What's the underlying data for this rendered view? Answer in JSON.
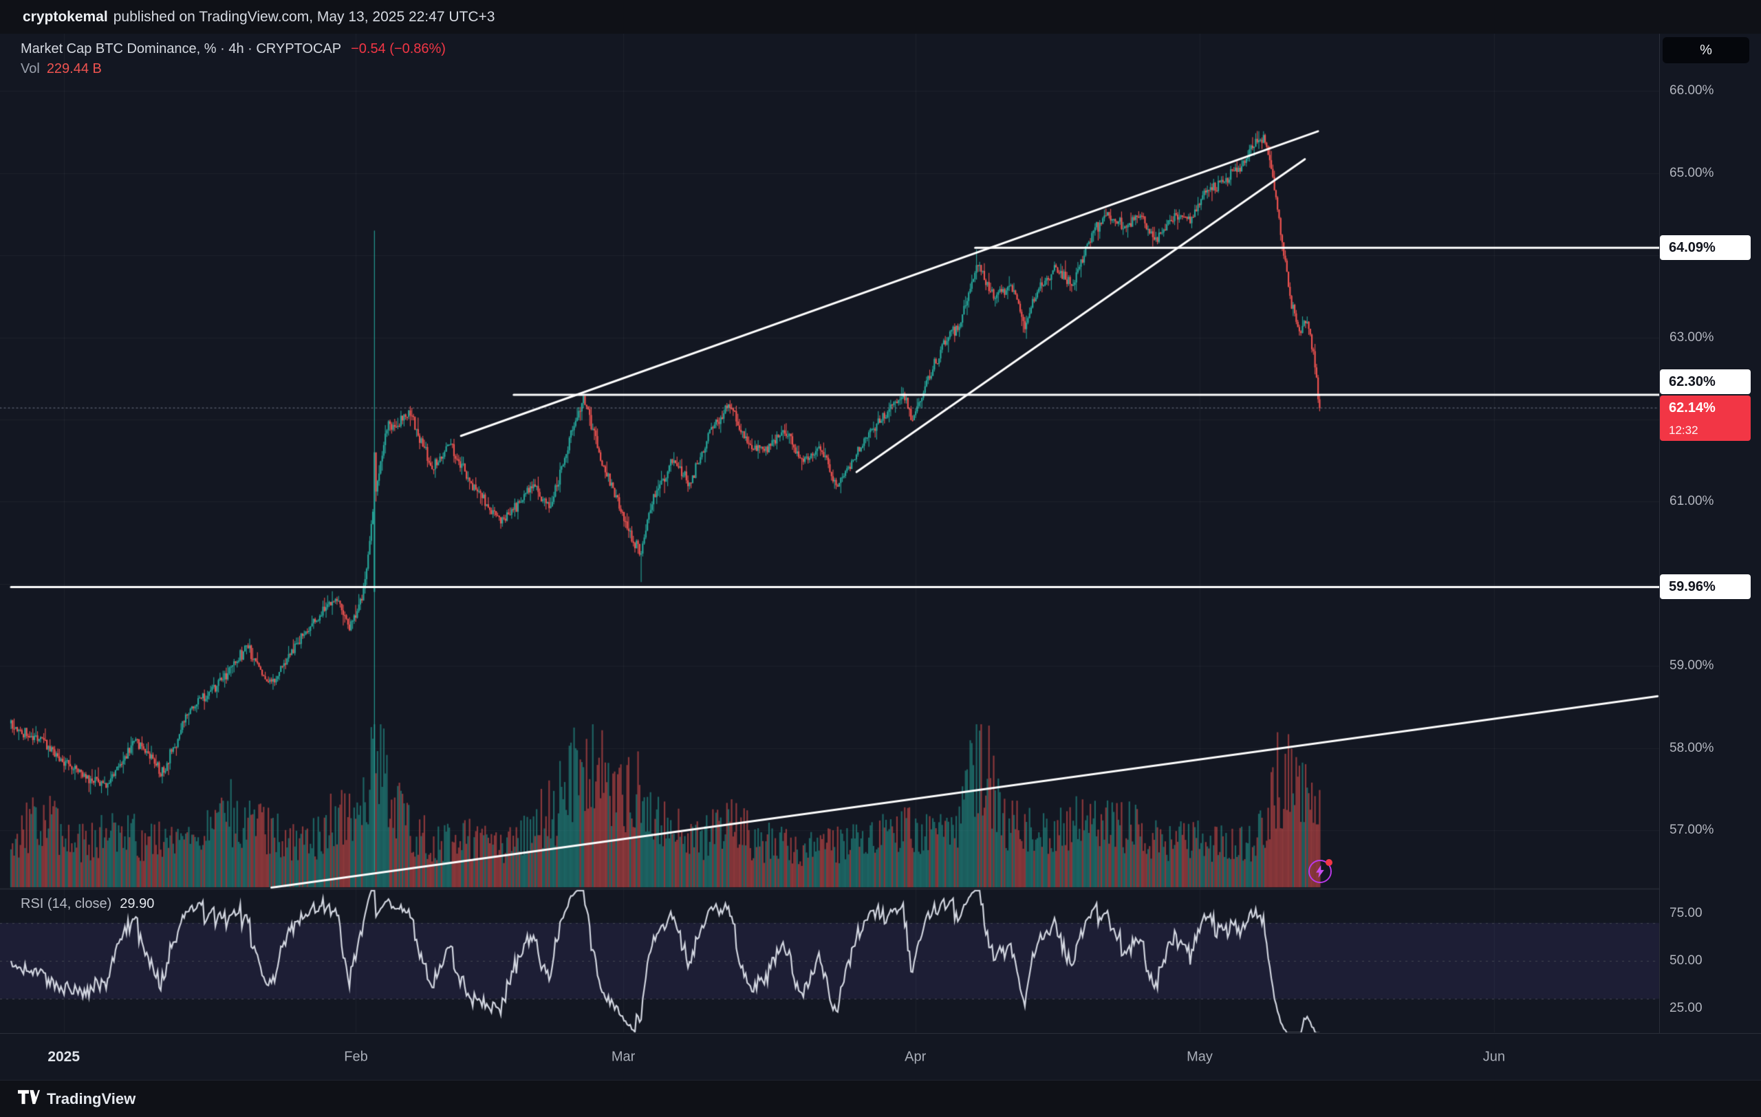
{
  "colors": {
    "bg_outer": "#0f1117",
    "bg_chart": "#131722",
    "up": "#26a69a",
    "down": "#ef5350",
    "accent_red": "#f23645",
    "vol_up": "rgba(38,166,154,0.55)",
    "vol_down": "rgba(239,83,80,0.55)",
    "line_white": "#ffffff",
    "grid": "rgba(255,255,255,0.045)",
    "separator": "#2a2e39",
    "rsi_line": "#d2d6e0",
    "rsi_band": "rgba(129,108,255,0.09)",
    "rsi_dash": "#434651",
    "last_price_line": "rgba(170,178,195,0.5)",
    "axis_text": "#b2b5be"
  },
  "header": {
    "author": "cryptokemal",
    "publish_text": "published on TradingView.com, May 13, 2025 22:47 UTC+3"
  },
  "legend": {
    "title": "Market Cap BTC Dominance, % · 4h · CRYPTOCAP",
    "change": "−0.54 (−0.86%)",
    "vol_label": "Vol",
    "vol_value": "229.44 B"
  },
  "rsi_legend": {
    "title": "RSI (14, close)",
    "value": "29.90"
  },
  "axis": {
    "unit_button": "%",
    "y_ticks": [
      {
        "label": "66.00%",
        "value": 66
      },
      {
        "label": "65.00%",
        "value": 65
      },
      {
        "label": "63.00%",
        "value": 63
      },
      {
        "label": "61.00%",
        "value": 61
      },
      {
        "label": "59.00%",
        "value": 59
      },
      {
        "label": "58.00%",
        "value": 58
      },
      {
        "label": "57.00%",
        "value": 57
      }
    ],
    "price_labels": {
      "level_64": "64.09%",
      "level_62": "62.30%",
      "last": "62.14%",
      "countdown": "12:32",
      "level_60": "59.96%"
    },
    "rsi_ticks": [
      {
        "label": "75.00",
        "value": 75
      },
      {
        "label": "50.00",
        "value": 50
      },
      {
        "label": "25.00",
        "value": 25
      }
    ],
    "x_ticks": [
      {
        "label": "2025",
        "f": 0.032,
        "major": true
      },
      {
        "label": "Feb",
        "f": 0.2093
      },
      {
        "label": "Mar",
        "f": 0.3715
      },
      {
        "label": "Apr",
        "f": 0.5487
      },
      {
        "label": "May",
        "f": 0.7212
      },
      {
        "label": "Jun",
        "f": 0.8998
      }
    ]
  },
  "footer": {
    "brand": "TradingView"
  },
  "chart_data": {
    "type": "candlestick",
    "title": "Market Cap BTC Dominance",
    "symbol": "CRYPTOCAP",
    "interval": "4h",
    "last_price": 62.14,
    "change": -0.54,
    "change_pct": -0.86,
    "volume_label": "229.44 B",
    "rsi_period": 14,
    "rsi_last": 29.9,
    "key_levels": [
      64.09,
      62.3,
      59.96
    ],
    "price_axis_range": [
      56.28,
      66.7
    ],
    "rsi_axis_ticks": [
      75,
      50,
      25
    ],
    "x_tick_labels": [
      "2025",
      "Feb",
      "Mar",
      "Apr",
      "May",
      "Jun"
    ],
    "bars": 840,
    "plot_span_fraction": 0.794,
    "price_path": [
      [
        0.0,
        58.3
      ],
      [
        0.02,
        58.05
      ],
      [
        0.034,
        57.8
      ],
      [
        0.058,
        57.5
      ],
      [
        0.075,
        58.1
      ],
      [
        0.092,
        57.7
      ],
      [
        0.109,
        58.5
      ],
      [
        0.13,
        58.85
      ],
      [
        0.143,
        59.25
      ],
      [
        0.157,
        58.75
      ],
      [
        0.174,
        59.3
      ],
      [
        0.187,
        59.6
      ],
      [
        0.198,
        59.85
      ],
      [
        0.205,
        59.45
      ],
      [
        0.214,
        59.9
      ],
      [
        0.2203,
        61.0
      ],
      [
        0.228,
        61.9
      ],
      [
        0.242,
        62.05
      ],
      [
        0.256,
        61.4
      ],
      [
        0.266,
        61.7
      ],
      [
        0.28,
        61.2
      ],
      [
        0.297,
        60.75
      ],
      [
        0.307,
        60.95
      ],
      [
        0.317,
        61.2
      ],
      [
        0.327,
        60.9
      ],
      [
        0.341,
        61.9
      ],
      [
        0.348,
        62.25
      ],
      [
        0.358,
        61.5
      ],
      [
        0.368,
        61.0
      ],
      [
        0.378,
        60.5
      ],
      [
        0.382,
        60.35
      ],
      [
        0.389,
        61.0
      ],
      [
        0.402,
        61.5
      ],
      [
        0.412,
        61.2
      ],
      [
        0.423,
        61.8
      ],
      [
        0.436,
        62.2
      ],
      [
        0.447,
        61.7
      ],
      [
        0.457,
        61.6
      ],
      [
        0.47,
        61.85
      ],
      [
        0.481,
        61.5
      ],
      [
        0.491,
        61.65
      ],
      [
        0.501,
        61.2
      ],
      [
        0.511,
        61.5
      ],
      [
        0.521,
        61.85
      ],
      [
        0.532,
        62.1
      ],
      [
        0.542,
        62.3
      ],
      [
        0.547,
        62.0
      ],
      [
        0.556,
        62.5
      ],
      [
        0.566,
        62.9
      ],
      [
        0.576,
        63.2
      ],
      [
        0.586,
        63.9
      ],
      [
        0.596,
        63.5
      ],
      [
        0.607,
        63.65
      ],
      [
        0.615,
        63.15
      ],
      [
        0.624,
        63.6
      ],
      [
        0.634,
        63.85
      ],
      [
        0.644,
        63.6
      ],
      [
        0.654,
        64.2
      ],
      [
        0.665,
        64.5
      ],
      [
        0.675,
        64.35
      ],
      [
        0.685,
        64.5
      ],
      [
        0.695,
        64.2
      ],
      [
        0.706,
        64.5
      ],
      [
        0.716,
        64.45
      ],
      [
        0.726,
        64.8
      ],
      [
        0.736,
        64.9
      ],
      [
        0.746,
        65.1
      ],
      [
        0.755,
        65.35
      ],
      [
        0.76,
        65.45
      ],
      [
        0.765,
        65.0
      ],
      [
        0.769,
        64.5
      ],
      [
        0.773,
        63.9
      ],
      [
        0.777,
        63.4
      ],
      [
        0.782,
        63.05
      ],
      [
        0.786,
        63.25
      ],
      [
        0.79,
        62.85
      ],
      [
        0.794,
        62.14
      ]
    ],
    "events": [
      {
        "f": 0.2203,
        "high": 64.3,
        "low": 56.5,
        "open": 59.9,
        "close": 61.6
      },
      {
        "f": 0.382,
        "low": 60.02
      },
      {
        "f": 0.586,
        "high": 64.07
      },
      {
        "f": 0.76,
        "high": 65.51
      },
      {
        "f": 0.794,
        "low": 62.1
      }
    ],
    "volume_path": [
      [
        0.0,
        0.35
      ],
      [
        0.02,
        0.5
      ],
      [
        0.04,
        0.3
      ],
      [
        0.06,
        0.45
      ],
      [
        0.08,
        0.35
      ],
      [
        0.1,
        0.3
      ],
      [
        0.12,
        0.4
      ],
      [
        0.135,
        0.55
      ],
      [
        0.15,
        0.45
      ],
      [
        0.165,
        0.35
      ],
      [
        0.18,
        0.3
      ],
      [
        0.195,
        0.5
      ],
      [
        0.205,
        0.55
      ],
      [
        0.215,
        0.65
      ],
      [
        0.2203,
        1.0
      ],
      [
        0.228,
        0.8
      ],
      [
        0.235,
        0.6
      ],
      [
        0.245,
        0.4
      ],
      [
        0.26,
        0.3
      ],
      [
        0.28,
        0.35
      ],
      [
        0.3,
        0.3
      ],
      [
        0.315,
        0.45
      ],
      [
        0.33,
        0.55
      ],
      [
        0.345,
        0.9
      ],
      [
        0.355,
        0.95
      ],
      [
        0.362,
        0.8
      ],
      [
        0.37,
        0.65
      ],
      [
        0.378,
        0.75
      ],
      [
        0.385,
        0.65
      ],
      [
        0.4,
        0.45
      ],
      [
        0.42,
        0.35
      ],
      [
        0.435,
        0.5
      ],
      [
        0.45,
        0.35
      ],
      [
        0.47,
        0.3
      ],
      [
        0.49,
        0.28
      ],
      [
        0.51,
        0.32
      ],
      [
        0.53,
        0.38
      ],
      [
        0.55,
        0.42
      ],
      [
        0.565,
        0.38
      ],
      [
        0.576,
        0.5
      ],
      [
        0.586,
        1.0
      ],
      [
        0.592,
        0.9
      ],
      [
        0.6,
        0.5
      ],
      [
        0.62,
        0.38
      ],
      [
        0.64,
        0.42
      ],
      [
        0.655,
        0.5
      ],
      [
        0.67,
        0.45
      ],
      [
        0.685,
        0.4
      ],
      [
        0.7,
        0.32
      ],
      [
        0.715,
        0.35
      ],
      [
        0.73,
        0.3
      ],
      [
        0.745,
        0.32
      ],
      [
        0.755,
        0.35
      ],
      [
        0.762,
        0.45
      ],
      [
        0.768,
        0.8
      ],
      [
        0.774,
        0.78
      ],
      [
        0.78,
        0.65
      ],
      [
        0.787,
        0.6
      ],
      [
        0.794,
        0.65
      ]
    ],
    "trendlines": [
      {
        "name": "wedge-upper",
        "p1": [
          0.273,
          61.8
        ],
        "p2": [
          0.793,
          65.51
        ]
      },
      {
        "name": "wedge-lower",
        "p1": [
          0.513,
          61.36
        ],
        "p2": [
          0.785,
          65.17
        ]
      },
      {
        "name": "resistance-64-09",
        "p1": [
          0.585,
          64.09
        ],
        "p2": [
          1.0,
          64.09
        ]
      },
      {
        "name": "resistance-62-30",
        "p1": [
          0.305,
          62.3
        ],
        "p2": [
          1.0,
          62.3
        ]
      },
      {
        "name": "support-59-96",
        "p1": [
          0.0,
          59.96
        ],
        "p2": [
          1.0,
          59.96
        ]
      },
      {
        "name": "long-term-support",
        "p1": [
          0.158,
          56.3
        ],
        "p2": [
          0.999,
          58.63
        ]
      }
    ]
  }
}
